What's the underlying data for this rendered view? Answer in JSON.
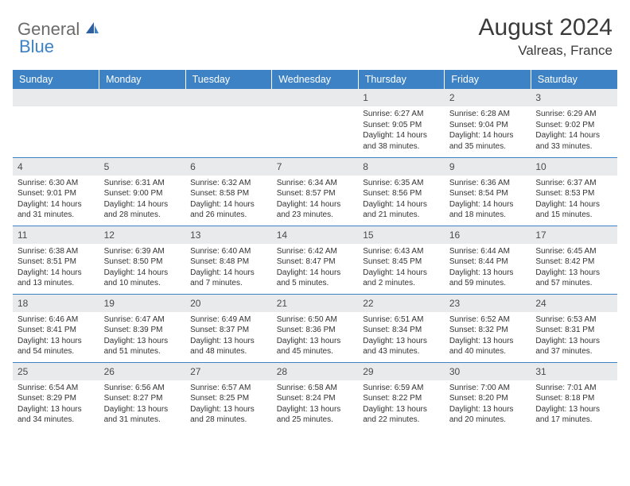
{
  "brand": {
    "part1": "General",
    "part2": "Blue"
  },
  "title": "August 2024",
  "subtitle": "Valreas, France",
  "colors": {
    "accent": "#3d82c4",
    "header_text": "#ffffff",
    "daynum_bg": "#e8eaec",
    "body_text": "#333333",
    "title_text": "#3a3a3a",
    "logo_gray": "#6b6b6b"
  },
  "day_headers": [
    "Sunday",
    "Monday",
    "Tuesday",
    "Wednesday",
    "Thursday",
    "Friday",
    "Saturday"
  ],
  "weeks": [
    [
      {
        "day": "",
        "sunrise": "",
        "sunset": "",
        "daylight": ""
      },
      {
        "day": "",
        "sunrise": "",
        "sunset": "",
        "daylight": ""
      },
      {
        "day": "",
        "sunrise": "",
        "sunset": "",
        "daylight": ""
      },
      {
        "day": "",
        "sunrise": "",
        "sunset": "",
        "daylight": ""
      },
      {
        "day": "1",
        "sunrise": "Sunrise: 6:27 AM",
        "sunset": "Sunset: 9:05 PM",
        "daylight": "Daylight: 14 hours and 38 minutes."
      },
      {
        "day": "2",
        "sunrise": "Sunrise: 6:28 AM",
        "sunset": "Sunset: 9:04 PM",
        "daylight": "Daylight: 14 hours and 35 minutes."
      },
      {
        "day": "3",
        "sunrise": "Sunrise: 6:29 AM",
        "sunset": "Sunset: 9:02 PM",
        "daylight": "Daylight: 14 hours and 33 minutes."
      }
    ],
    [
      {
        "day": "4",
        "sunrise": "Sunrise: 6:30 AM",
        "sunset": "Sunset: 9:01 PM",
        "daylight": "Daylight: 14 hours and 31 minutes."
      },
      {
        "day": "5",
        "sunrise": "Sunrise: 6:31 AM",
        "sunset": "Sunset: 9:00 PM",
        "daylight": "Daylight: 14 hours and 28 minutes."
      },
      {
        "day": "6",
        "sunrise": "Sunrise: 6:32 AM",
        "sunset": "Sunset: 8:58 PM",
        "daylight": "Daylight: 14 hours and 26 minutes."
      },
      {
        "day": "7",
        "sunrise": "Sunrise: 6:34 AM",
        "sunset": "Sunset: 8:57 PM",
        "daylight": "Daylight: 14 hours and 23 minutes."
      },
      {
        "day": "8",
        "sunrise": "Sunrise: 6:35 AM",
        "sunset": "Sunset: 8:56 PM",
        "daylight": "Daylight: 14 hours and 21 minutes."
      },
      {
        "day": "9",
        "sunrise": "Sunrise: 6:36 AM",
        "sunset": "Sunset: 8:54 PM",
        "daylight": "Daylight: 14 hours and 18 minutes."
      },
      {
        "day": "10",
        "sunrise": "Sunrise: 6:37 AM",
        "sunset": "Sunset: 8:53 PM",
        "daylight": "Daylight: 14 hours and 15 minutes."
      }
    ],
    [
      {
        "day": "11",
        "sunrise": "Sunrise: 6:38 AM",
        "sunset": "Sunset: 8:51 PM",
        "daylight": "Daylight: 14 hours and 13 minutes."
      },
      {
        "day": "12",
        "sunrise": "Sunrise: 6:39 AM",
        "sunset": "Sunset: 8:50 PM",
        "daylight": "Daylight: 14 hours and 10 minutes."
      },
      {
        "day": "13",
        "sunrise": "Sunrise: 6:40 AM",
        "sunset": "Sunset: 8:48 PM",
        "daylight": "Daylight: 14 hours and 7 minutes."
      },
      {
        "day": "14",
        "sunrise": "Sunrise: 6:42 AM",
        "sunset": "Sunset: 8:47 PM",
        "daylight": "Daylight: 14 hours and 5 minutes."
      },
      {
        "day": "15",
        "sunrise": "Sunrise: 6:43 AM",
        "sunset": "Sunset: 8:45 PM",
        "daylight": "Daylight: 14 hours and 2 minutes."
      },
      {
        "day": "16",
        "sunrise": "Sunrise: 6:44 AM",
        "sunset": "Sunset: 8:44 PM",
        "daylight": "Daylight: 13 hours and 59 minutes."
      },
      {
        "day": "17",
        "sunrise": "Sunrise: 6:45 AM",
        "sunset": "Sunset: 8:42 PM",
        "daylight": "Daylight: 13 hours and 57 minutes."
      }
    ],
    [
      {
        "day": "18",
        "sunrise": "Sunrise: 6:46 AM",
        "sunset": "Sunset: 8:41 PM",
        "daylight": "Daylight: 13 hours and 54 minutes."
      },
      {
        "day": "19",
        "sunrise": "Sunrise: 6:47 AM",
        "sunset": "Sunset: 8:39 PM",
        "daylight": "Daylight: 13 hours and 51 minutes."
      },
      {
        "day": "20",
        "sunrise": "Sunrise: 6:49 AM",
        "sunset": "Sunset: 8:37 PM",
        "daylight": "Daylight: 13 hours and 48 minutes."
      },
      {
        "day": "21",
        "sunrise": "Sunrise: 6:50 AM",
        "sunset": "Sunset: 8:36 PM",
        "daylight": "Daylight: 13 hours and 45 minutes."
      },
      {
        "day": "22",
        "sunrise": "Sunrise: 6:51 AM",
        "sunset": "Sunset: 8:34 PM",
        "daylight": "Daylight: 13 hours and 43 minutes."
      },
      {
        "day": "23",
        "sunrise": "Sunrise: 6:52 AM",
        "sunset": "Sunset: 8:32 PM",
        "daylight": "Daylight: 13 hours and 40 minutes."
      },
      {
        "day": "24",
        "sunrise": "Sunrise: 6:53 AM",
        "sunset": "Sunset: 8:31 PM",
        "daylight": "Daylight: 13 hours and 37 minutes."
      }
    ],
    [
      {
        "day": "25",
        "sunrise": "Sunrise: 6:54 AM",
        "sunset": "Sunset: 8:29 PM",
        "daylight": "Daylight: 13 hours and 34 minutes."
      },
      {
        "day": "26",
        "sunrise": "Sunrise: 6:56 AM",
        "sunset": "Sunset: 8:27 PM",
        "daylight": "Daylight: 13 hours and 31 minutes."
      },
      {
        "day": "27",
        "sunrise": "Sunrise: 6:57 AM",
        "sunset": "Sunset: 8:25 PM",
        "daylight": "Daylight: 13 hours and 28 minutes."
      },
      {
        "day": "28",
        "sunrise": "Sunrise: 6:58 AM",
        "sunset": "Sunset: 8:24 PM",
        "daylight": "Daylight: 13 hours and 25 minutes."
      },
      {
        "day": "29",
        "sunrise": "Sunrise: 6:59 AM",
        "sunset": "Sunset: 8:22 PM",
        "daylight": "Daylight: 13 hours and 22 minutes."
      },
      {
        "day": "30",
        "sunrise": "Sunrise: 7:00 AM",
        "sunset": "Sunset: 8:20 PM",
        "daylight": "Daylight: 13 hours and 20 minutes."
      },
      {
        "day": "31",
        "sunrise": "Sunrise: 7:01 AM",
        "sunset": "Sunset: 8:18 PM",
        "daylight": "Daylight: 13 hours and 17 minutes."
      }
    ]
  ]
}
